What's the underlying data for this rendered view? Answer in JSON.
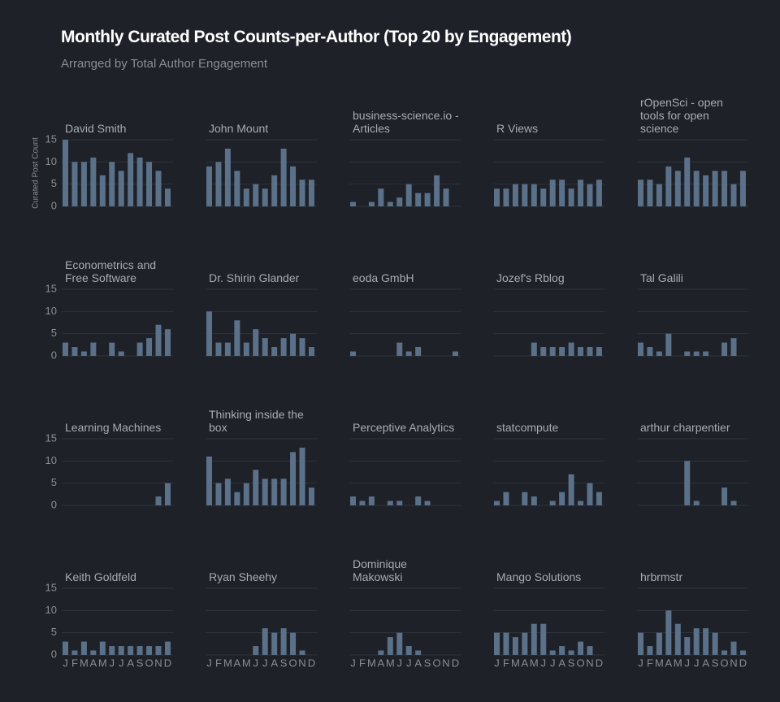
{
  "chart_data": {
    "type": "bar",
    "title": "Monthly Curated Post Counts-per-Author (Top 20 by Engagement)",
    "subtitle": "Arranged by Total Author Engagement",
    "y_label": "Curated Post Count",
    "categories": [
      "J",
      "F",
      "M",
      "A",
      "M",
      "J",
      "J",
      "A",
      "S",
      "O",
      "N",
      "D"
    ],
    "ylim": [
      0,
      15
    ],
    "yticks": [
      0,
      5,
      10,
      15
    ],
    "grid": true,
    "color": "#5a7189",
    "panels": [
      {
        "name": "David Smith",
        "values": [
          15,
          10,
          10,
          11,
          7,
          10,
          8,
          12,
          11,
          10,
          8,
          4
        ]
      },
      {
        "name": "John Mount",
        "values": [
          9,
          10,
          13,
          8,
          4,
          5,
          4,
          7,
          13,
          9,
          6,
          6
        ]
      },
      {
        "name": "business-science.io - Articles",
        "values": [
          1,
          0,
          1,
          4,
          1,
          2,
          5,
          3,
          3,
          7,
          4,
          0
        ]
      },
      {
        "name": "R Views",
        "values": [
          4,
          4,
          5,
          5,
          5,
          4,
          6,
          6,
          4,
          6,
          5,
          6
        ]
      },
      {
        "name": "rOpenSci - open tools for open science",
        "values": [
          6,
          6,
          5,
          9,
          8,
          11,
          8,
          7,
          8,
          8,
          5,
          8
        ]
      },
      {
        "name": "Econometrics and Free Software",
        "values": [
          3,
          2,
          1,
          3,
          0,
          3,
          1,
          0,
          3,
          4,
          7,
          6
        ]
      },
      {
        "name": "Dr. Shirin Glander",
        "values": [
          10,
          3,
          3,
          8,
          3,
          6,
          4,
          2,
          4,
          5,
          4,
          2
        ]
      },
      {
        "name": "eoda GmbH",
        "values": [
          1,
          0,
          0,
          0,
          0,
          3,
          1,
          2,
          0,
          0,
          0,
          1
        ]
      },
      {
        "name": "Jozef's Rblog",
        "values": [
          0,
          0,
          0,
          0,
          3,
          2,
          2,
          2,
          3,
          2,
          2,
          2
        ]
      },
      {
        "name": "Tal Galili",
        "values": [
          3,
          2,
          1,
          5,
          0,
          1,
          1,
          1,
          0,
          3,
          4,
          0
        ]
      },
      {
        "name": "Learning Machines",
        "values": [
          0,
          0,
          0,
          0,
          0,
          0,
          0,
          0,
          0,
          0,
          2,
          5
        ]
      },
      {
        "name": "Thinking inside the box",
        "values": [
          11,
          5,
          6,
          3,
          5,
          8,
          6,
          6,
          6,
          12,
          13,
          4
        ]
      },
      {
        "name": "Perceptive Analytics",
        "values": [
          2,
          1,
          2,
          0,
          1,
          1,
          0,
          2,
          1,
          0,
          0,
          0
        ]
      },
      {
        "name": "statcompute",
        "values": [
          1,
          3,
          0,
          3,
          2,
          0,
          1,
          3,
          7,
          1,
          5,
          3
        ]
      },
      {
        "name": "arthur charpentier",
        "values": [
          0,
          0,
          0,
          0,
          0,
          10,
          1,
          0,
          0,
          4,
          1,
          0
        ]
      },
      {
        "name": "Keith Goldfeld",
        "values": [
          3,
          1,
          3,
          1,
          3,
          2,
          2,
          2,
          2,
          2,
          2,
          3
        ]
      },
      {
        "name": "Ryan Sheehy",
        "values": [
          0,
          0,
          0,
          0,
          0,
          2,
          6,
          5,
          6,
          5,
          1,
          0
        ]
      },
      {
        "name": "Dominique Makowski",
        "values": [
          0,
          0,
          0,
          1,
          4,
          5,
          2,
          1,
          0,
          0,
          0,
          0
        ]
      },
      {
        "name": "Mango Solutions",
        "values": [
          5,
          5,
          4,
          5,
          7,
          7,
          1,
          2,
          1,
          3,
          2,
          0
        ]
      },
      {
        "name": "hrbrmstr",
        "values": [
          5,
          2,
          5,
          10,
          7,
          4,
          6,
          6,
          5,
          1,
          3,
          1
        ]
      }
    ]
  }
}
